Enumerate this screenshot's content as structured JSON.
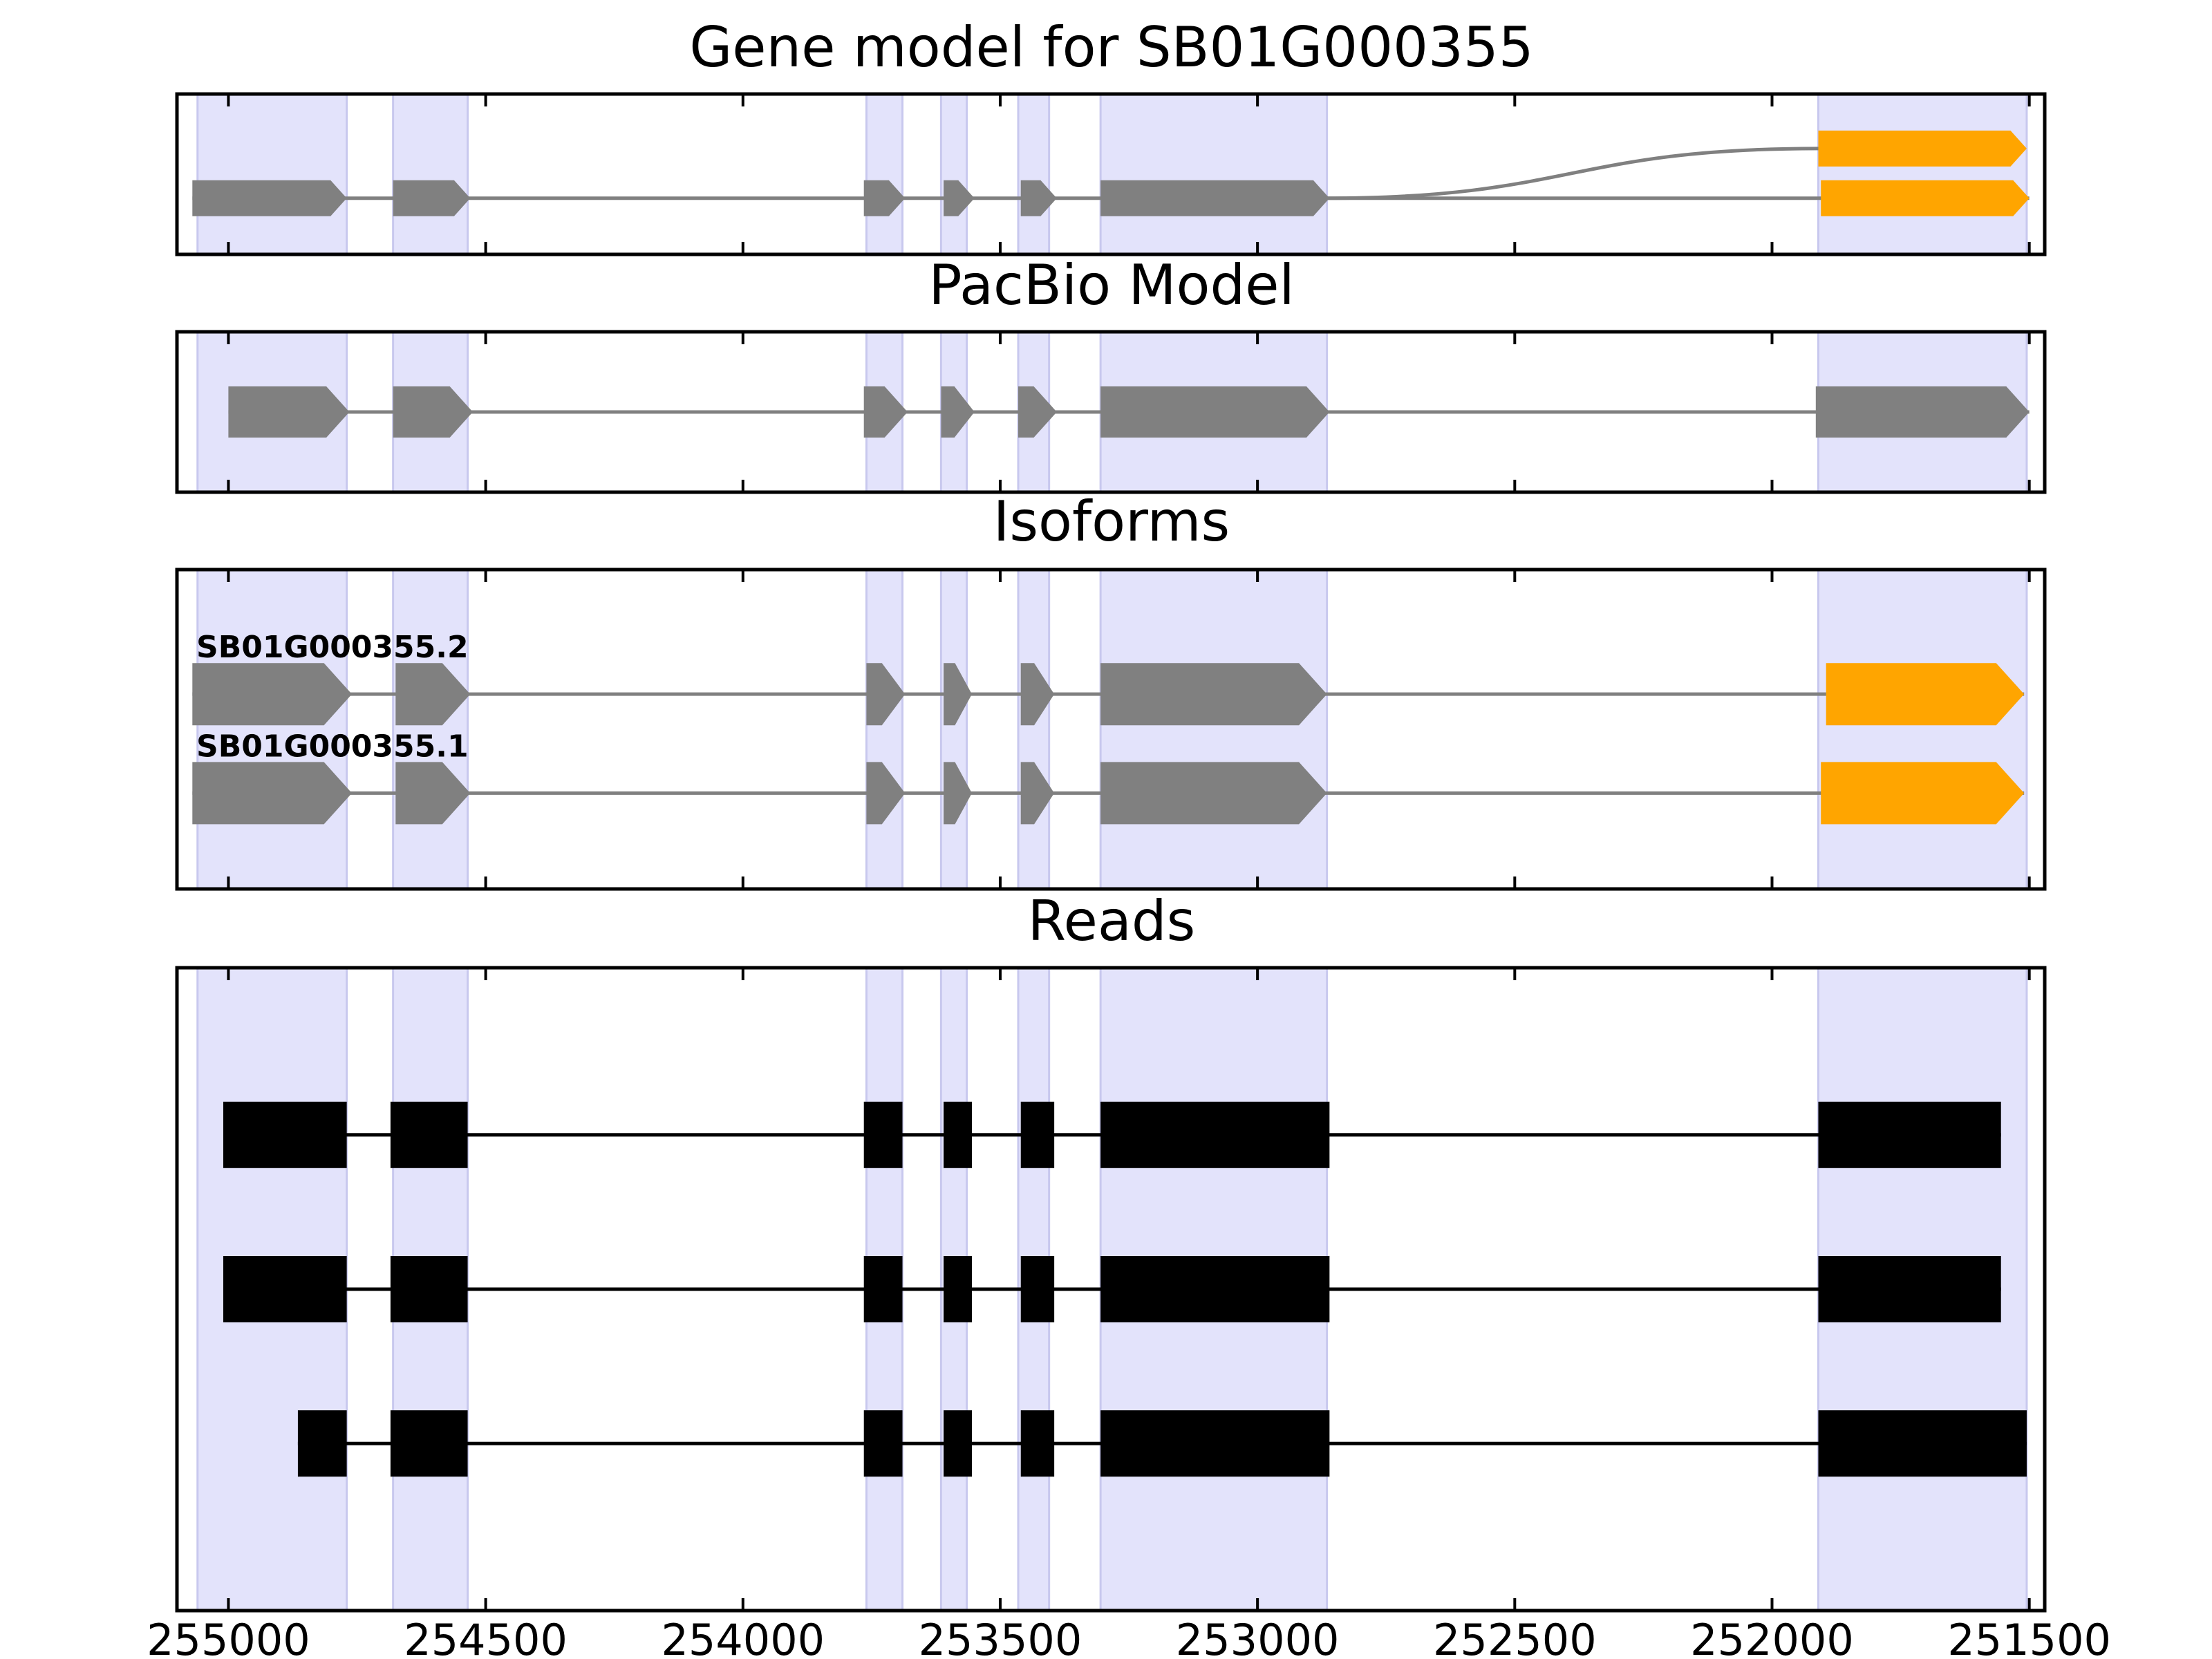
{
  "chart_data": {
    "type": "gene_structure",
    "x_axis": {
      "lim": [
        255100,
        251470
      ],
      "reversed": true,
      "ticks": [
        255000,
        254500,
        254000,
        253500,
        253000,
        252500,
        252000,
        251500
      ],
      "tick_labels": [
        "255000",
        "254500",
        "254000",
        "253500",
        "253000",
        "252500",
        "252000",
        "251500"
      ]
    },
    "colors": {
      "highlight": "#e3e3fb",
      "highlight_edge": "#c8c8ee",
      "exon_gray": "#808080",
      "exon_orange": "#ffa500",
      "read_black": "#000000",
      "intron_gray": "#808080"
    },
    "highlight_regions": [
      [
        255060,
        254770
      ],
      [
        254680,
        254535
      ],
      [
        253760,
        253690
      ],
      [
        253615,
        253565
      ],
      [
        253465,
        253405
      ],
      [
        253305,
        252865
      ],
      [
        251910,
        251505
      ]
    ],
    "panels": [
      {
        "id": "gene-model",
        "title": "Gene model for SB01G000355",
        "tracks": [
          {
            "y": 0.66,
            "exons": [
              {
                "start": 251910,
                "end": 251505,
                "color": "orange"
              }
            ],
            "junction": {
              "from": 252870,
              "to": 251910,
              "y_from": 0.35
            }
          },
          {
            "y": 0.35,
            "exons": [
              {
                "start": 255070,
                "end": 254770,
                "color": "gray"
              },
              {
                "start": 254680,
                "end": 254530,
                "color": "gray"
              },
              {
                "start": 253765,
                "end": 253685,
                "color": "gray"
              },
              {
                "start": 253610,
                "end": 253550,
                "color": "gray"
              },
              {
                "start": 253460,
                "end": 253390,
                "color": "gray"
              },
              {
                "start": 253305,
                "end": 252860,
                "color": "gray"
              },
              {
                "start": 251905,
                "end": 251500,
                "color": "orange"
              }
            ]
          }
        ]
      },
      {
        "id": "pacbio-model",
        "title": "PacBio Model",
        "tracks": [
          {
            "y": 0.5,
            "exons": [
              {
                "start": 255000,
                "end": 254765,
                "color": "gray"
              },
              {
                "start": 254680,
                "end": 254525,
                "color": "gray"
              },
              {
                "start": 253765,
                "end": 253680,
                "color": "gray"
              },
              {
                "start": 253615,
                "end": 253550,
                "color": "gray"
              },
              {
                "start": 253465,
                "end": 253390,
                "color": "gray"
              },
              {
                "start": 253305,
                "end": 252860,
                "color": "gray"
              },
              {
                "start": 251915,
                "end": 251500,
                "color": "gray"
              }
            ]
          }
        ]
      },
      {
        "id": "isoforms",
        "title": "Isoforms",
        "tracks": [
          {
            "label": "SB01G000355.2",
            "y": 0.61,
            "exons": [
              {
                "start": 255070,
                "end": 254760,
                "color": "gray"
              },
              {
                "start": 254675,
                "end": 254530,
                "color": "gray"
              },
              {
                "start": 253760,
                "end": 253685,
                "color": "gray"
              },
              {
                "start": 253610,
                "end": 253555,
                "color": "gray"
              },
              {
                "start": 253460,
                "end": 253395,
                "color": "gray"
              },
              {
                "start": 253305,
                "end": 252865,
                "color": "gray"
              },
              {
                "start": 251895,
                "end": 251510,
                "color": "orange"
              }
            ]
          },
          {
            "label": "SB01G000355.1",
            "y": 0.3,
            "exons": [
              {
                "start": 255070,
                "end": 254760,
                "color": "gray"
              },
              {
                "start": 254675,
                "end": 254530,
                "color": "gray"
              },
              {
                "start": 253760,
                "end": 253685,
                "color": "gray"
              },
              {
                "start": 253610,
                "end": 253555,
                "color": "gray"
              },
              {
                "start": 253460,
                "end": 253395,
                "color": "gray"
              },
              {
                "start": 253305,
                "end": 252865,
                "color": "gray"
              },
              {
                "start": 251905,
                "end": 251510,
                "color": "orange"
              }
            ]
          }
        ]
      },
      {
        "id": "reads",
        "title": "Reads",
        "tracks": [
          {
            "y": 0.74,
            "blocks": [
              [
                255010,
                254770
              ],
              [
                254685,
                254535
              ],
              [
                253765,
                253690
              ],
              [
                253610,
                253555
              ],
              [
                253460,
                253395
              ],
              [
                253305,
                252860
              ],
              [
                251910,
                251555
              ]
            ]
          },
          {
            "y": 0.5,
            "blocks": [
              [
                255010,
                254770
              ],
              [
                254685,
                254535
              ],
              [
                253765,
                253690
              ],
              [
                253610,
                253555
              ],
              [
                253460,
                253395
              ],
              [
                253305,
                252860
              ],
              [
                251910,
                251555
              ]
            ]
          },
          {
            "y": 0.26,
            "blocks": [
              [
                254865,
                254770
              ],
              [
                254685,
                254535
              ],
              [
                253765,
                253690
              ],
              [
                253610,
                253555
              ],
              [
                253460,
                253395
              ],
              [
                253305,
                252860
              ],
              [
                251910,
                251505
              ]
            ]
          }
        ]
      }
    ]
  }
}
